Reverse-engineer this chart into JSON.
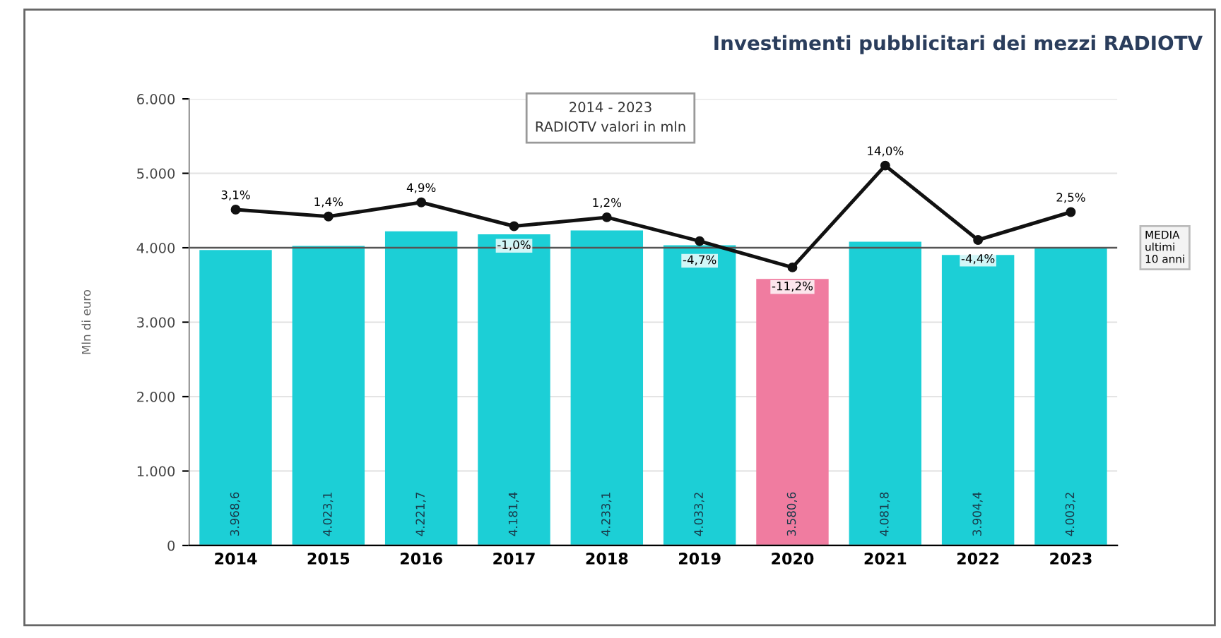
{
  "chart_data": {
    "type": "bar",
    "title": "Investimenti pubblicitari dei mezzi RADIOTV",
    "subtitle": "2014 - 2023\nRADIOTV valori in mln",
    "ylabel": "Mln di euro",
    "categories": [
      "2014",
      "2015",
      "2016",
      "2017",
      "2018",
      "2019",
      "2020",
      "2021",
      "2022",
      "2023"
    ],
    "series": [
      {
        "colors": [
          "#1ccfd6",
          "#1ccfd6",
          "#1ccfd6",
          "#1ccfd6",
          "#1ccfd6",
          "#1ccfd6",
          "#f07ca0",
          "#1ccfd6",
          "#1ccfd6",
          "#1ccfd6"
        ],
        "values": [
          3968.6,
          4023.1,
          4221.7,
          4181.4,
          4233.1,
          4033.2,
          3580.6,
          4081.8,
          3904.4,
          4003.2
        ],
        "value_labels": [
          "3.968,6",
          "4.023,1",
          "4.221,7",
          "4.181,4",
          "4.233,1",
          "4.033,2",
          "3.580,6",
          "4.081,8",
          "3.904,4",
          "4.003,2"
        ]
      },
      {
        "type": "line",
        "axis": "y2",
        "color": "#111111",
        "marker": "circle",
        "values": [
          3.1,
          1.4,
          4.9,
          -1.0,
          1.2,
          -4.7,
          -11.2,
          14.0,
          -4.4,
          2.5
        ],
        "value_labels": [
          "3,1%",
          "1,4%",
          "4,9%",
          "-1,0%",
          "1,2%",
          "-4,7%",
          "-11,2%",
          "14,0%",
          "-4,4%",
          "2,5%"
        ]
      }
    ],
    "ylim": [
      0,
      6000
    ],
    "yticks": [
      {
        "value": 0,
        "label": "0"
      },
      {
        "value": 1000,
        "label": "1.000"
      },
      {
        "value": 2000,
        "label": "2.000"
      },
      {
        "value": 3000,
        "label": "3.000"
      },
      {
        "value": 4000,
        "label": "4.000"
      },
      {
        "value": 5000,
        "label": "5.000"
      },
      {
        "value": 6000,
        "label": "6.000"
      }
    ],
    "y2lim": [
      -80,
      30.5
    ],
    "ref_lines": [
      {
        "axis": "y",
        "value": 4000,
        "label": "MEDIA\nultimi\n10 anni",
        "color": "#555555"
      }
    ],
    "grid": "y"
  }
}
